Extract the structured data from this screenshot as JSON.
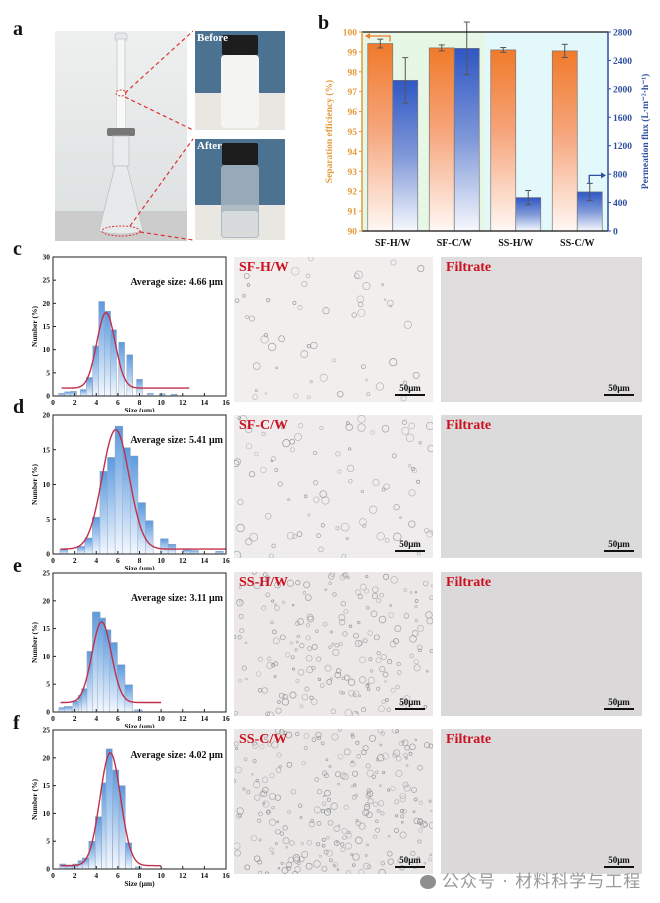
{
  "panel_letters": [
    "a",
    "b",
    "c",
    "d",
    "e",
    "f"
  ],
  "panel_a": {
    "before_label": "Before",
    "after_label": "After"
  },
  "watermark": "公众号 · 材料科学与工程",
  "micrographs": [
    {
      "label": "SF-H/W",
      "filtrate_label": "Filtrate",
      "scale": "50μm",
      "density": 55,
      "bg": "#f1eeee"
    },
    {
      "label": "SF-C/W",
      "filtrate_label": "Filtrate",
      "scale": "50μm",
      "density": 90,
      "bg": "#eeecec"
    },
    {
      "label": "SS-H/W",
      "filtrate_label": "Filtrate",
      "scale": "50μm",
      "density": 200,
      "bg": "#ece8e8"
    },
    {
      "label": "SS-C/W",
      "filtrate_label": "Filtrate",
      "scale": "50μm",
      "density": 260,
      "bg": "#e9e6e6"
    }
  ],
  "colors": {
    "orange": "#f07a2a",
    "blue": "#2f57c4",
    "axis_orange": "#e39a3c",
    "axis_blue": "#2d4f9e",
    "fit_red": "#c0304a",
    "hist_blue": "#5b9ae0",
    "label_red": "#cc1020",
    "bg_green": "#e6f7e6",
    "bg_cyan": "#e2f8fb"
  },
  "chart_data": [
    {
      "id": "b",
      "type": "bar",
      "title": "",
      "categories": [
        "SF-H/W",
        "SF-C/W",
        "SS-H/W",
        "SS-C/W"
      ],
      "series": [
        {
          "name": "Separation efficiency",
          "axis": "left",
          "values": [
            99.42,
            99.2,
            99.1,
            99.05
          ],
          "errors": [
            0.22,
            0.15,
            0.12,
            0.33
          ]
        },
        {
          "name": "Permeation flux",
          "axis": "right",
          "values": [
            2120,
            2570,
            470,
            550
          ],
          "errors": [
            320,
            370,
            100,
            120
          ]
        }
      ],
      "ylabel": "Separation efficiency (%)",
      "ylabel_right": "Permeation flux (L·m⁻²·h⁻¹)",
      "ylim": [
        90,
        100
      ],
      "ylim_right": [
        0,
        2800
      ],
      "yticks": [
        90,
        91,
        92,
        93,
        94,
        95,
        96,
        97,
        98,
        99,
        100
      ],
      "yticks_right": [
        0,
        400,
        800,
        1200,
        1600,
        2000,
        2400,
        2800
      ],
      "background_regions": [
        "SF (green)",
        "SS (cyan)"
      ]
    },
    {
      "id": "c",
      "type": "bar",
      "title": "Average size: 4.66 μm",
      "xlabel": "Size (μm)",
      "ylabel": "Number (%)",
      "xlim": [
        0,
        16
      ],
      "ylim": [
        0,
        30
      ],
      "xticks": [
        0,
        2,
        4,
        6,
        8,
        10,
        12,
        14,
        16
      ],
      "yticks": [
        0,
        5,
        10,
        15,
        20,
        25,
        30
      ],
      "bin_width": 0.55,
      "x": [
        0.8,
        1.35,
        1.9,
        2.8,
        3.35,
        3.95,
        4.5,
        5.05,
        5.6,
        6.35,
        7.1,
        8.0,
        9.0,
        10.1,
        11.2
      ],
      "values": [
        0.6,
        0.9,
        1.0,
        1.4,
        4.0,
        10.8,
        20.4,
        18.3,
        14.3,
        11.6,
        8.9,
        3.6,
        0.6,
        0.5,
        0.4
      ],
      "fit": {
        "type": "gaussian",
        "center": 4.9,
        "peak": 18.0,
        "sigma": 0.85,
        "baseline": 1.7,
        "x_range": [
          0.8,
          12.6
        ]
      }
    },
    {
      "id": "d",
      "type": "bar",
      "title": "Average size: 5.41 μm",
      "xlabel": "Size (μm)",
      "ylabel": "Number (%)",
      "xlim": [
        0,
        16
      ],
      "ylim": [
        0,
        20
      ],
      "xticks": [
        0,
        2,
        4,
        6,
        8,
        10,
        12,
        14,
        16
      ],
      "yticks": [
        0,
        5,
        10,
        15,
        20
      ],
      "bin_width": 0.72,
      "x": [
        1.0,
        2.6,
        3.3,
        4.0,
        4.7,
        5.4,
        6.1,
        6.8,
        7.5,
        8.2,
        8.9,
        10.3,
        11.0,
        12.4,
        13.1,
        15.4
      ],
      "values": [
        0.7,
        1.1,
        2.3,
        5.3,
        11.9,
        13.9,
        18.4,
        15.3,
        14.1,
        7.4,
        4.8,
        2.2,
        1.4,
        0.6,
        0.5,
        0.4
      ],
      "fit": {
        "type": "gaussian",
        "center": 5.8,
        "peak": 17.9,
        "sigma": 1.25,
        "baseline": 0.7,
        "x_range": [
          0.7,
          16
        ]
      }
    },
    {
      "id": "e",
      "type": "bar",
      "title": "Average size: 3.11 μm",
      "xlabel": "Size (μm)",
      "ylabel": "Number (%)",
      "xlim": [
        0,
        16
      ],
      "ylim": [
        0,
        25
      ],
      "xticks": [
        0,
        2,
        4,
        6,
        8,
        10,
        12,
        14,
        16
      ],
      "yticks": [
        0,
        5,
        10,
        15,
        20,
        25
      ],
      "bin_width": 0.72,
      "x": [
        0.9,
        1.4,
        2.2,
        2.7,
        3.0,
        3.5,
        4.0,
        4.5,
        5.0,
        5.6,
        6.3,
        7.0,
        7.9
      ],
      "values": [
        0.8,
        1.0,
        2.0,
        3.0,
        4.2,
        10.9,
        18.0,
        16.9,
        14.8,
        12.5,
        8.5,
        4.9,
        0.4
      ],
      "fit": {
        "type": "gaussian",
        "center": 4.5,
        "peak": 16.2,
        "sigma": 0.9,
        "baseline": 1.7,
        "x_range": [
          0.7,
          10
        ]
      }
    },
    {
      "id": "f",
      "type": "bar",
      "title": "Average size: 4.02 μm",
      "xlabel": "Size (μm)",
      "ylabel": "Number (%)",
      "xlim": [
        0,
        16
      ],
      "ylim": [
        0,
        25
      ],
      "xticks": [
        0,
        2,
        4,
        6,
        8,
        10,
        12,
        14,
        16
      ],
      "yticks": [
        0,
        5,
        10,
        15,
        20,
        25
      ],
      "bin_width": 0.58,
      "x": [
        0.9,
        1.5,
        2.1,
        2.6,
        3.0,
        3.6,
        4.2,
        4.8,
        5.2,
        5.8,
        6.4,
        7.0,
        7.9
      ],
      "values": [
        0.9,
        0.7,
        0.9,
        1.5,
        2.0,
        5.0,
        9.4,
        15.5,
        21.6,
        17.8,
        15.0,
        4.7,
        0.4
      ],
      "fit": {
        "type": "gaussian",
        "center": 5.3,
        "peak": 20.9,
        "sigma": 0.95,
        "baseline": 0.6,
        "x_range": [
          0.7,
          10
        ]
      }
    }
  ]
}
